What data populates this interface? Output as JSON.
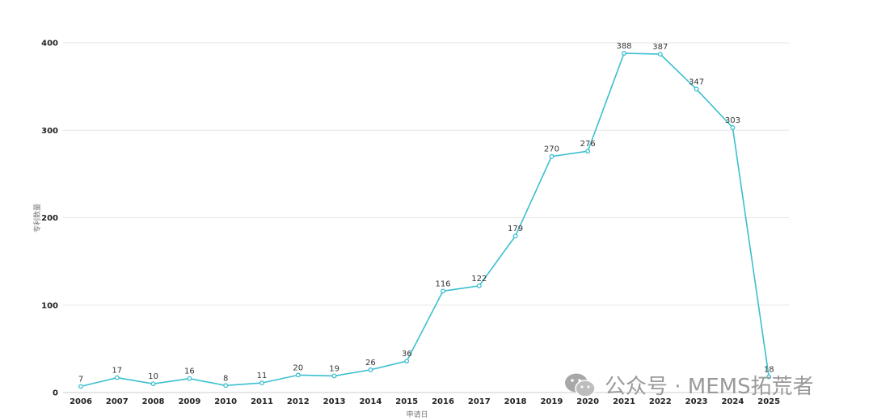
{
  "chart_data": {
    "type": "line",
    "title": "",
    "xlabel": "申请日",
    "ylabel": "专利数量",
    "categories": [
      "2006",
      "2007",
      "2008",
      "2009",
      "2010",
      "2011",
      "2012",
      "2013",
      "2014",
      "2015",
      "2016",
      "2017",
      "2018",
      "2019",
      "2020",
      "2021",
      "2022",
      "2023",
      "2024",
      "2025"
    ],
    "series": [
      {
        "values": [
          7,
          17,
          10,
          16,
          8,
          11,
          20,
          19,
          26,
          36,
          116,
          122,
          179,
          270,
          276,
          388,
          387,
          347,
          303,
          18
        ]
      }
    ],
    "ylim": [
      0,
      400
    ],
    "yticks": [
      0,
      100,
      200,
      300,
      400
    ],
    "grid": true,
    "line_color": "#3bbfcf"
  },
  "watermark": {
    "icon": "wechat-icon",
    "text": "公众号 · MEMS拓荒者"
  }
}
